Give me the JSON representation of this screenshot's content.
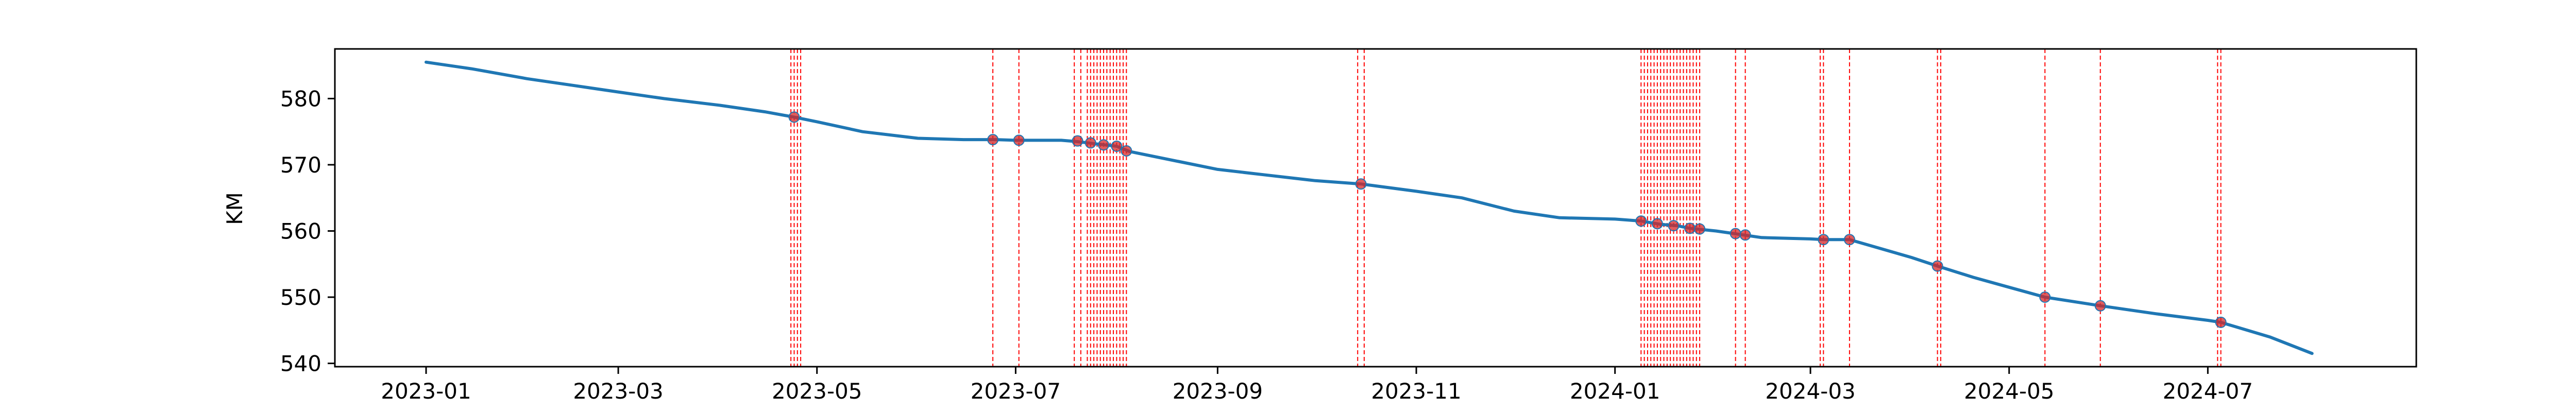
{
  "chart_data": {
    "type": "line",
    "title": "",
    "xlabel": "",
    "ylabel": "KM",
    "grid": false,
    "xlim": [
      "2022-12-04",
      "2024-09-03"
    ],
    "ylim": [
      539.5,
      587.5
    ],
    "x_ticks": [
      "2023-01",
      "2023-03",
      "2023-05",
      "2023-07",
      "2023-09",
      "2023-11",
      "2024-01",
      "2024-03",
      "2024-05",
      "2024-07"
    ],
    "y_ticks": [
      540,
      550,
      560,
      570,
      580
    ],
    "colors": {
      "line": "#1f77b4",
      "event_line": "#ff0000",
      "marker": "#d62728"
    },
    "series": [
      {
        "x": [
          "2023-01-01",
          "2023-01-15",
          "2023-02-01",
          "2023-02-15",
          "2023-03-01",
          "2023-03-15",
          "2023-04-01",
          "2023-04-15",
          "2023-04-24",
          "2023-05-01",
          "2023-05-15",
          "2023-06-01",
          "2023-06-15",
          "2023-06-25",
          "2023-07-01",
          "2023-07-15",
          "2023-07-20",
          "2023-07-25",
          "2023-08-01",
          "2023-08-05",
          "2023-08-20",
          "2023-09-01",
          "2023-09-15",
          "2023-10-01",
          "2023-10-15",
          "2023-11-01",
          "2023-11-15",
          "2023-12-01",
          "2023-12-15",
          "2024-01-01",
          "2024-01-09",
          "2024-01-15",
          "2024-01-20",
          "2024-01-24",
          "2024-02-01",
          "2024-02-08",
          "2024-02-15",
          "2024-03-01",
          "2024-03-05",
          "2024-03-13",
          "2024-04-01",
          "2024-04-09",
          "2024-04-20",
          "2024-05-01",
          "2024-05-12",
          "2024-05-29",
          "2024-06-15",
          "2024-07-01",
          "2024-07-05",
          "2024-07-20",
          "2024-08-02"
        ],
        "y": [
          585.5,
          584.5,
          583.0,
          582.0,
          581.0,
          580.0,
          579.0,
          578.0,
          577.2,
          576.5,
          575.0,
          574.0,
          573.8,
          573.8,
          573.7,
          573.7,
          573.5,
          573.2,
          572.8,
          572.0,
          570.5,
          569.3,
          568.5,
          567.6,
          567.1,
          566.0,
          565.0,
          563.0,
          562.0,
          561.8,
          561.5,
          561.0,
          560.8,
          560.4,
          560.0,
          559.5,
          559.0,
          558.8,
          558.7,
          558.7,
          556.0,
          554.7,
          553.0,
          551.5,
          550.0,
          548.7,
          547.5,
          546.5,
          546.2,
          544.0,
          541.5
        ]
      }
    ],
    "event_dates": [
      "2023-04-23",
      "2023-04-24",
      "2023-04-25",
      "2023-04-26",
      "2023-06-24",
      "2023-07-02",
      "2023-07-19",
      "2023-07-21",
      "2023-07-23",
      "2023-07-24",
      "2023-07-25",
      "2023-07-26",
      "2023-07-27",
      "2023-07-28",
      "2023-07-29",
      "2023-07-30",
      "2023-07-31",
      "2023-08-01",
      "2023-08-02",
      "2023-08-03",
      "2023-08-04",
      "2023-10-14",
      "2023-10-16",
      "2024-01-09",
      "2024-01-10",
      "2024-01-11",
      "2024-01-12",
      "2024-01-13",
      "2024-01-14",
      "2024-01-15",
      "2024-01-16",
      "2024-01-17",
      "2024-01-18",
      "2024-01-19",
      "2024-01-20",
      "2024-01-21",
      "2024-01-22",
      "2024-01-23",
      "2024-01-24",
      "2024-01-25",
      "2024-01-26",
      "2024-01-27",
      "2024-02-07",
      "2024-02-10",
      "2024-03-04",
      "2024-03-05",
      "2024-03-13",
      "2024-04-09",
      "2024-04-10",
      "2024-05-12",
      "2024-05-29",
      "2024-07-04",
      "2024-07-05"
    ],
    "event_points": [
      {
        "x": "2023-04-24",
        "y": 577.2
      },
      {
        "x": "2023-06-24",
        "y": 573.8
      },
      {
        "x": "2023-07-02",
        "y": 573.7
      },
      {
        "x": "2023-07-20",
        "y": 573.6
      },
      {
        "x": "2023-07-24",
        "y": 573.3
      },
      {
        "x": "2023-07-28",
        "y": 573.0
      },
      {
        "x": "2023-08-01",
        "y": 572.8
      },
      {
        "x": "2023-08-04",
        "y": 572.1
      },
      {
        "x": "2023-10-15",
        "y": 567.1
      },
      {
        "x": "2024-01-09",
        "y": 561.5
      },
      {
        "x": "2024-01-14",
        "y": 561.1
      },
      {
        "x": "2024-01-19",
        "y": 560.8
      },
      {
        "x": "2024-01-24",
        "y": 560.4
      },
      {
        "x": "2024-01-27",
        "y": 560.3
      },
      {
        "x": "2024-02-07",
        "y": 559.6
      },
      {
        "x": "2024-02-10",
        "y": 559.4
      },
      {
        "x": "2024-03-05",
        "y": 558.7
      },
      {
        "x": "2024-03-13",
        "y": 558.7
      },
      {
        "x": "2024-04-09",
        "y": 554.7
      },
      {
        "x": "2024-05-12",
        "y": 550.0
      },
      {
        "x": "2024-05-29",
        "y": 548.7
      },
      {
        "x": "2024-07-05",
        "y": 546.2
      }
    ]
  }
}
